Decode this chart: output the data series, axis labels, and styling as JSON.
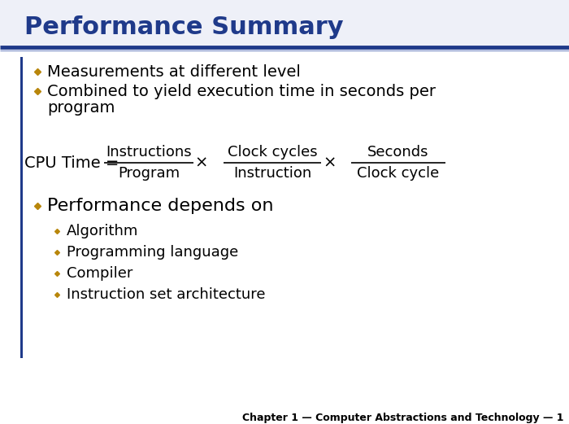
{
  "title": "Performance Summary",
  "title_color": "#1F3A8A",
  "title_fontsize": 22,
  "background_color": "#D4D4D4",
  "slide_bg": "#FFFFFF",
  "left_bar_color": "#1F3A8A",
  "bullet_color": "#B8860B",
  "bullet1": "Measurements at different level",
  "bullet2_line1": "Combined to yield execution time in seconds per",
  "bullet2_line2": "program",
  "bullet3": "Performance depends on",
  "sub_bullets": [
    "Algorithm",
    "Programming language",
    "Compiler",
    "Instruction set architecture"
  ],
  "formula_label": "CPU Time = ",
  "frac1_num": "Instructions",
  "frac1_den": "Program",
  "frac2_num": "Clock cycles",
  "frac2_den": "Instruction",
  "frac3_num": "Seconds",
  "frac3_den": "Clock cycle",
  "footer": "Chapter 1 — Computer Abstractions and Technology — 1",
  "footer_fontsize": 9,
  "text_color": "#000000",
  "formula_fontsize": 13,
  "bullet_fontsize": 14,
  "sub_bullet_fontsize": 13,
  "perf_fontsize": 16
}
